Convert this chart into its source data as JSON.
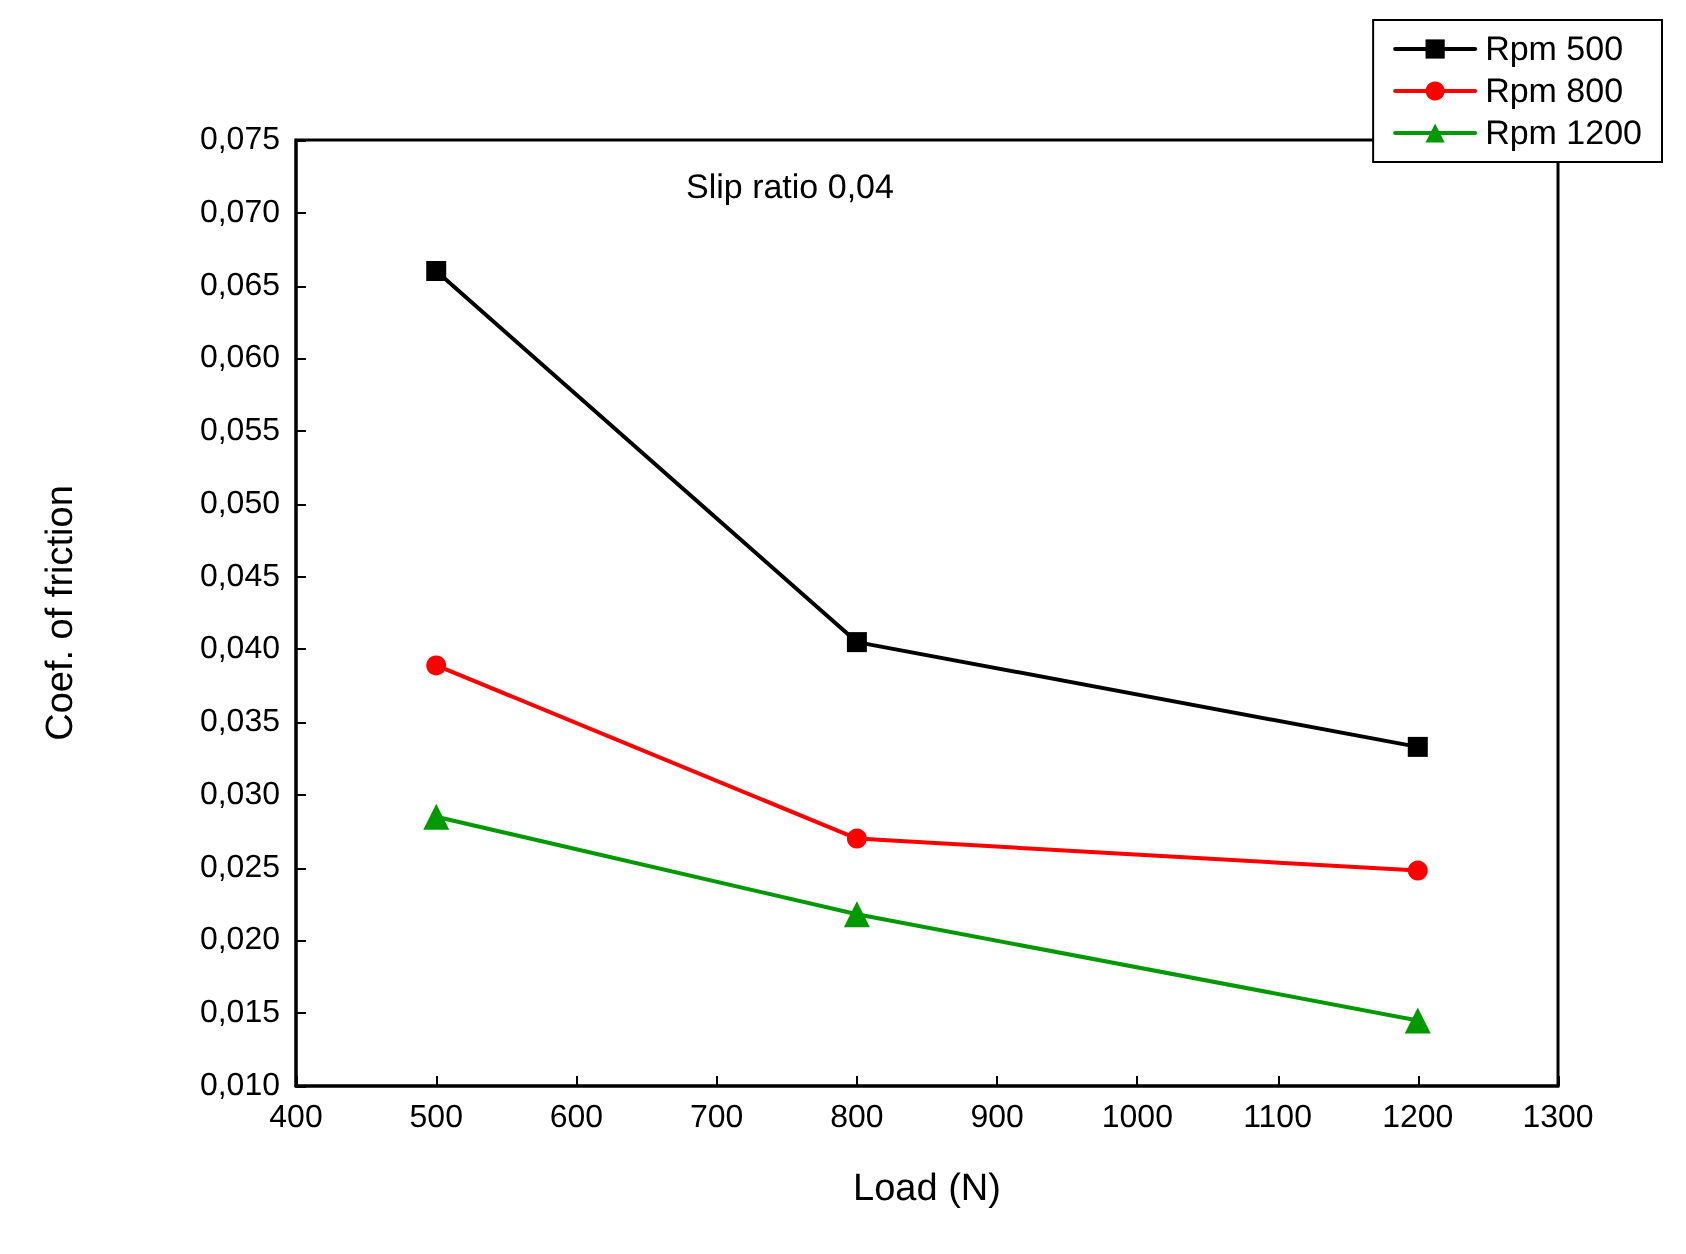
{
  "chart_data": {
    "type": "line",
    "title": "Slip ratio 0,04",
    "xlabel": "Load (N)",
    "ylabel": "Coef. of friction",
    "x": [
      500,
      800,
      1200
    ],
    "series": [
      {
        "name": "Rpm 500",
        "color": "#000000",
        "marker": "square",
        "values": [
          0.066,
          0.0405,
          0.0333
        ]
      },
      {
        "name": "Rpm 800",
        "color": "#ff0000",
        "marker": "circle",
        "values": [
          0.0389,
          0.027,
          0.0248
        ]
      },
      {
        "name": "Rpm 1200",
        "color": "#009900",
        "marker": "triangle",
        "values": [
          0.0285,
          0.0218,
          0.0145
        ]
      }
    ],
    "xlim": [
      400,
      1300
    ],
    "xticks": [
      400,
      500,
      600,
      700,
      800,
      900,
      1000,
      1100,
      1200,
      1300
    ],
    "ylim": [
      0.01,
      0.075
    ],
    "yticks": [
      {
        "value": 0.01,
        "label": "0,010"
      },
      {
        "value": 0.015,
        "label": "0,015"
      },
      {
        "value": 0.02,
        "label": "0,020"
      },
      {
        "value": 0.025,
        "label": "0,025"
      },
      {
        "value": 0.03,
        "label": "0,030"
      },
      {
        "value": 0.035,
        "label": "0,035"
      },
      {
        "value": 0.04,
        "label": "0,040"
      },
      {
        "value": 0.045,
        "label": "0,045"
      },
      {
        "value": 0.05,
        "label": "0,050"
      },
      {
        "value": 0.055,
        "label": "0,055"
      },
      {
        "value": 0.06,
        "label": "0,060"
      },
      {
        "value": 0.065,
        "label": "0,065"
      },
      {
        "value": 0.07,
        "label": "0,070"
      },
      {
        "value": 0.075,
        "label": "0,075"
      }
    ],
    "grid": false,
    "legend": "top right",
    "line_style": "solid"
  }
}
